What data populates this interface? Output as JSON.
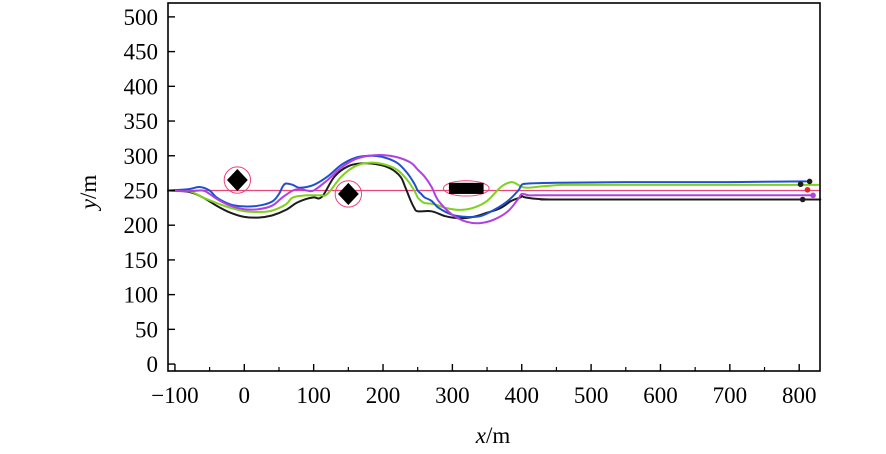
{
  "chart_data": {
    "type": "line",
    "title": "",
    "xlabel": {
      "var": "x",
      "unit": "/m"
    },
    "ylabel": {
      "var": "y",
      "unit": "/m"
    },
    "xlim": [
      -110,
      830
    ],
    "ylim": [
      -10,
      520
    ],
    "xticks": [
      -100,
      0,
      100,
      200,
      300,
      400,
      500,
      600,
      700,
      800
    ],
    "yticks": [
      0,
      50,
      100,
      150,
      200,
      250,
      300,
      350,
      400,
      450,
      500
    ],
    "xtick_labels": [
      "−100",
      "0",
      "100",
      "200",
      "300",
      "400",
      "500",
      "600",
      "700",
      "800"
    ],
    "ytick_labels": [
      "0",
      "50",
      "100",
      "150",
      "200",
      "250",
      "300",
      "350",
      "400",
      "450",
      "500"
    ],
    "grid": false,
    "reference_line": {
      "y": 250,
      "x_range": [
        -110,
        830
      ],
      "color": "#e8457a"
    },
    "obstacles": [
      {
        "shape": "diamond",
        "cx": -10,
        "cy": 265,
        "half_w": 15,
        "half_h": 16,
        "circle_r": 19
      },
      {
        "shape": "diamond",
        "cx": 150,
        "cy": 245,
        "half_w": 15,
        "half_h": 16,
        "circle_r": 19
      },
      {
        "shape": "rect",
        "cx": 320,
        "cy": 253,
        "half_w": 25,
        "half_h": 8,
        "ellipse_rx": 33,
        "ellipse_ry": 11
      }
    ],
    "series": [
      {
        "color": "#1c1c1c",
        "x": [
          -110,
          -80,
          -60,
          -40,
          -20,
          0,
          20,
          40,
          60,
          75,
          90,
          100,
          112,
          130,
          150,
          170,
          190,
          210,
          225,
          232,
          240,
          245,
          250,
          270,
          290,
          310,
          330,
          350,
          370,
          385,
          398,
          400,
          405,
          420,
          440,
          460,
          800,
          810
        ],
        "y": [
          250,
          248,
          240,
          228,
          218,
          212,
          211,
          214,
          222,
          232,
          238,
          240,
          241,
          270,
          285,
          289,
          288,
          282,
          270,
          255,
          235,
          225,
          220,
          220,
          213,
          210,
          212,
          218,
          225,
          235,
          240,
          242,
          240,
          238,
          237,
          237,
          237,
          237
        ]
      },
      {
        "color": "#7fd11e",
        "x": [
          -110,
          -80,
          -60,
          -40,
          -20,
          0,
          20,
          40,
          60,
          70,
          90,
          110,
          120,
          140,
          160,
          180,
          200,
          220,
          235,
          245,
          250,
          255,
          260,
          275,
          290,
          310,
          330,
          350,
          370,
          385,
          395,
          400,
          410,
          430,
          460,
          500,
          800,
          810
        ],
        "y": [
          250,
          249,
          240,
          232,
          225,
          220,
          219,
          221,
          230,
          240,
          243,
          243,
          245,
          270,
          285,
          290,
          288,
          280,
          265,
          250,
          240,
          235,
          232,
          230,
          225,
          222,
          225,
          235,
          255,
          262,
          258,
          255,
          254,
          256,
          258,
          258,
          258,
          258
        ]
      },
      {
        "color": "#2050d0",
        "x": [
          -110,
          -80,
          -65,
          -50,
          -40,
          -20,
          0,
          20,
          40,
          50,
          55,
          60,
          70,
          80,
          100,
          120,
          140,
          160,
          180,
          200,
          220,
          235,
          245,
          250,
          255,
          260,
          270,
          280,
          300,
          320,
          340,
          360,
          380,
          395,
          400,
          410,
          450,
          550,
          700,
          810
        ],
        "y": [
          250,
          252,
          255,
          250,
          240,
          230,
          227,
          228,
          234,
          245,
          255,
          260,
          258,
          254,
          258,
          270,
          287,
          297,
          300,
          298,
          290,
          275,
          260,
          250,
          245,
          240,
          235,
          225,
          215,
          212,
          213,
          222,
          235,
          250,
          258,
          260,
          261,
          262,
          262,
          263
        ]
      },
      {
        "color": "#b040e0",
        "x": [
          -110,
          -80,
          -60,
          -50,
          -40,
          -20,
          0,
          20,
          40,
          55,
          70,
          80,
          90,
          100,
          120,
          140,
          160,
          180,
          200,
          220,
          240,
          250,
          260,
          270,
          280,
          300,
          320,
          340,
          360,
          380,
          395,
          400,
          410,
          420,
          450,
          600,
          820
        ],
        "y": [
          250,
          249,
          250,
          245,
          238,
          228,
          223,
          223,
          228,
          240,
          250,
          252,
          250,
          250,
          265,
          283,
          295,
          300,
          301,
          298,
          290,
          280,
          270,
          255,
          235,
          215,
          205,
          203,
          208,
          220,
          238,
          245,
          243,
          243,
          243,
          243,
          243
        ]
      }
    ],
    "end_markers": [
      {
        "x": 802,
        "y": 259,
        "color": "#1c1c1c"
      },
      {
        "x": 815,
        "y": 263,
        "color": "#1c1c1c"
      },
      {
        "x": 812,
        "y": 251,
        "color": "#e82020"
      },
      {
        "x": 820,
        "y": 243,
        "color": "#b040e0"
      },
      {
        "x": 805,
        "y": 237,
        "color": "#1c1c1c"
      }
    ]
  }
}
